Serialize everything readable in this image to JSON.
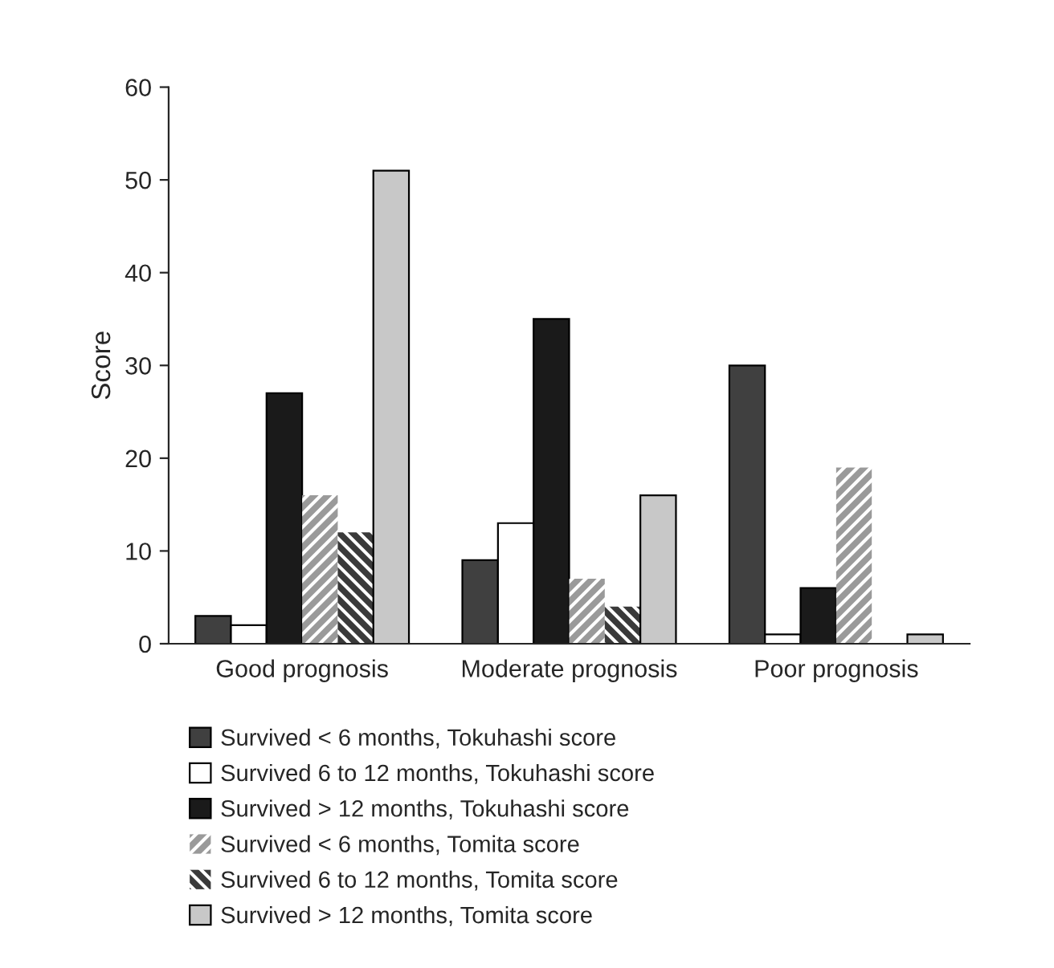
{
  "chart_data": {
    "type": "bar",
    "ylabel": "Score",
    "categories": [
      "Good prognosis",
      "Moderate prognosis",
      "Poor prognosis"
    ],
    "series": [
      {
        "name": "Survived < 6 months, Tokuhashi score",
        "color": "#404040",
        "values": [
          3,
          9,
          30
        ]
      },
      {
        "name": "Survived 6 to 12 months, Tokuhashi score",
        "color": "#ffffff",
        "values": [
          2,
          13,
          1
        ]
      },
      {
        "name": "Survived > 12 months, Tokuhashi score",
        "color": "#1a1a1a",
        "values": [
          27,
          35,
          6
        ]
      },
      {
        "name": "Survived < 6 months, Tomita score",
        "color": "#9a9a9a",
        "values": [
          16,
          7,
          19
        ]
      },
      {
        "name": "Survived 6 to 12 months, Tomita score",
        "color": "#3a3a3a",
        "values": [
          12,
          4,
          0
        ]
      },
      {
        "name": "Survived > 12 months, Tomita score",
        "color": "#c8c8c8",
        "values": [
          51,
          16,
          1
        ]
      }
    ],
    "ylim": [
      0,
      60
    ],
    "yticks": [
      0,
      10,
      20,
      30,
      40,
      50,
      60
    ],
    "legend": "bottom",
    "grid": false
  }
}
